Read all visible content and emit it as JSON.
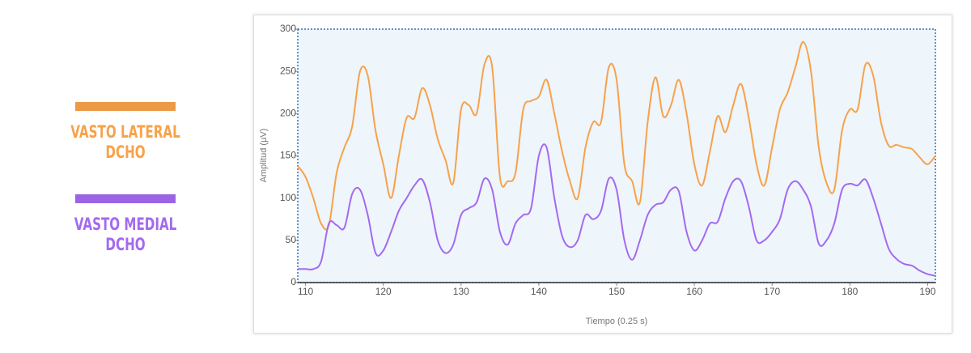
{
  "chart_data": {
    "type": "line",
    "x_label": "Tiempo (0.25 s)",
    "y_label": "Amplitud (µV)",
    "x": [
      109,
      110,
      111,
      112,
      113,
      114,
      115,
      116,
      117,
      118,
      119,
      120,
      121,
      122,
      123,
      124,
      125,
      126,
      127,
      128,
      129,
      130,
      131,
      132,
      133,
      134,
      135,
      136,
      137,
      138,
      139,
      140,
      141,
      142,
      143,
      144,
      145,
      146,
      147,
      148,
      149,
      150,
      151,
      152,
      153,
      154,
      155,
      156,
      157,
      158,
      159,
      160,
      161,
      162,
      163,
      164,
      165,
      166,
      167,
      168,
      169,
      170,
      171,
      172,
      173,
      174,
      175,
      176,
      177,
      178,
      179,
      180,
      181,
      182,
      183,
      184,
      185,
      186,
      187,
      188,
      189,
      190,
      191
    ],
    "series": [
      {
        "name": "VASTO LATERAL DCHO",
        "color": "#f7a24a",
        "values": [
          138,
          125,
          100,
          70,
          68,
          130,
          160,
          185,
          250,
          245,
          180,
          140,
          100,
          150,
          195,
          195,
          230,
          210,
          170,
          145,
          118,
          205,
          210,
          200,
          258,
          255,
          125,
          120,
          130,
          205,
          215,
          220,
          240,
          200,
          155,
          120,
          100,
          160,
          190,
          190,
          255,
          240,
          140,
          120,
          95,
          190,
          243,
          197,
          210,
          240,
          200,
          140,
          115,
          155,
          197,
          178,
          210,
          235,
          195,
          140,
          115,
          160,
          205,
          225,
          255,
          285,
          250,
          160,
          118,
          110,
          180,
          205,
          205,
          258,
          245,
          190,
          162,
          163,
          160,
          158,
          148,
          140,
          150
        ]
      },
      {
        "name": "VASTO MEDIAL DCHO",
        "color": "#a469f0",
        "values": [
          16,
          16,
          16,
          25,
          70,
          68,
          65,
          105,
          110,
          80,
          35,
          38,
          60,
          85,
          100,
          115,
          122,
          95,
          50,
          35,
          45,
          80,
          88,
          95,
          123,
          110,
          60,
          45,
          70,
          80,
          88,
          150,
          160,
          100,
          55,
          42,
          50,
          80,
          75,
          85,
          123,
          110,
          50,
          27,
          50,
          80,
          92,
          95,
          110,
          108,
          60,
          38,
          50,
          70,
          72,
          100,
          120,
          120,
          90,
          50,
          50,
          60,
          75,
          110,
          120,
          110,
          90,
          46,
          50,
          70,
          110,
          117,
          115,
          122,
          100,
          70,
          40,
          28,
          22,
          20,
          14,
          10,
          8
        ]
      }
    ],
    "xlim": [
      109,
      191
    ],
    "ylim": [
      0,
      300
    ],
    "xticks": [
      110,
      120,
      130,
      140,
      150,
      160,
      170,
      180,
      190
    ],
    "yticks": [
      0,
      50,
      100,
      150,
      200,
      250,
      300
    ],
    "grid": false
  }
}
